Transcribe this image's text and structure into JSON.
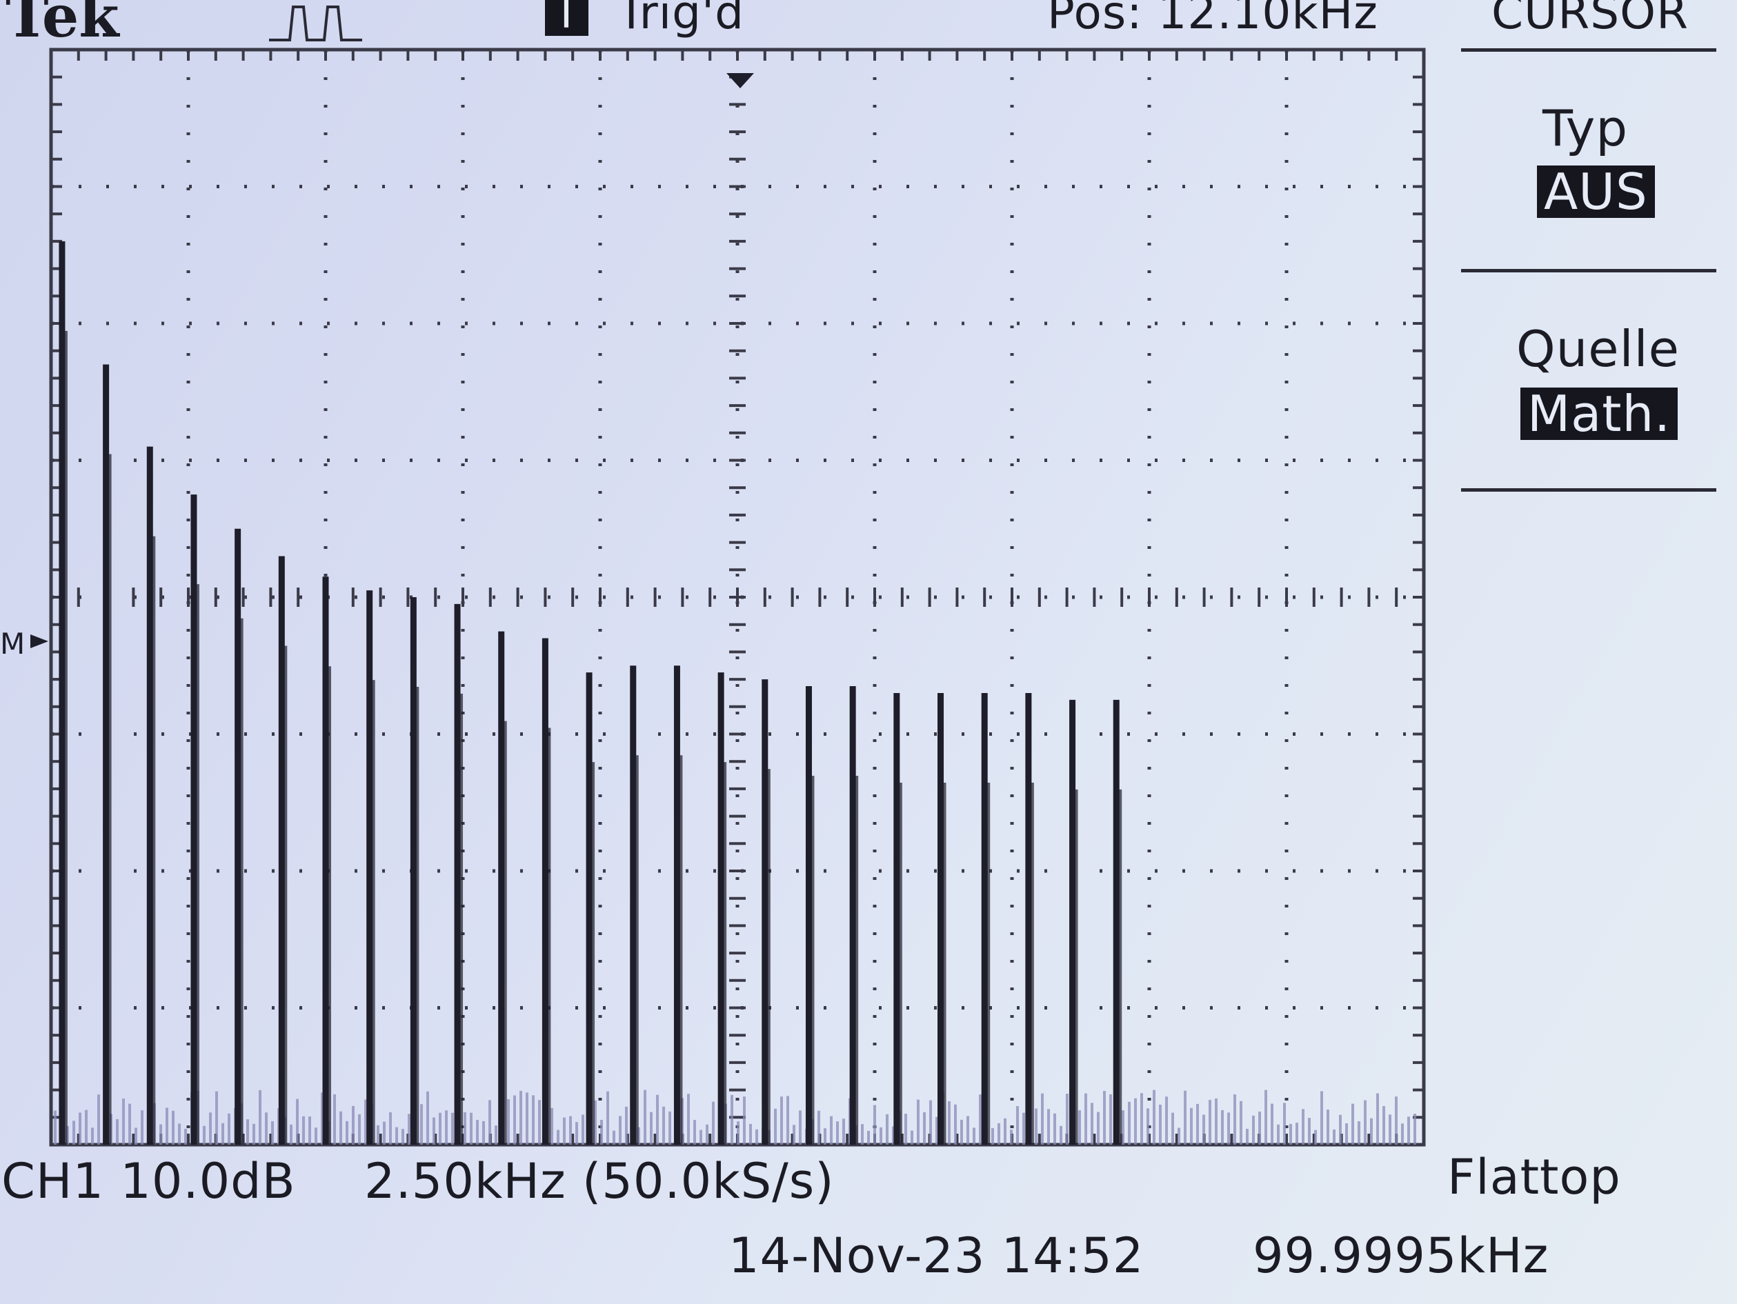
{
  "header": {
    "brand": "Tek",
    "trigger_badge": "T",
    "trigger_status": "Trig'd",
    "position": "Pos: 12.10kHz",
    "menu_title": "CURSOR"
  },
  "side_menu": {
    "items": [
      {
        "label": "Typ",
        "value": "AUS"
      },
      {
        "label": "Quelle",
        "value": "Math."
      }
    ]
  },
  "footer": {
    "channel_scale": "CH1 10.0dB",
    "span": "2.50kHz (50.0kS/s)",
    "window": "Flattop",
    "datetime": "14-Nov-23 14:52",
    "frequency": "99.9995kHz"
  },
  "colors": {
    "trace": "#1e1e2a",
    "grid": "#3a3a48",
    "background": "#dde3f3"
  },
  "chart_data": {
    "type": "bar",
    "x_unit": "kHz",
    "y_unit": "dB",
    "x_per_div": 2.5,
    "y_per_div": 10.0,
    "xlim": [
      0,
      25
    ],
    "ylim": [
      0,
      80
    ],
    "grid": true,
    "x": [
      0.2,
      1.0,
      1.8,
      2.6,
      3.4,
      4.2,
      5.0,
      5.8,
      6.6,
      7.4,
      8.2,
      9.0,
      9.8,
      10.6,
      11.4,
      12.2,
      13.0,
      13.8,
      14.6,
      15.4,
      16.2,
      17.0,
      17.8,
      18.6,
      19.4
    ],
    "values": [
      66.0,
      57.0,
      51.0,
      47.5,
      45.0,
      43.0,
      41.5,
      40.5,
      40.0,
      39.5,
      37.5,
      37.0,
      34.5,
      35.0,
      35.0,
      34.5,
      34.0,
      33.5,
      33.5,
      33.0,
      33.0,
      33.0,
      33.0,
      32.5,
      32.5
    ]
  }
}
